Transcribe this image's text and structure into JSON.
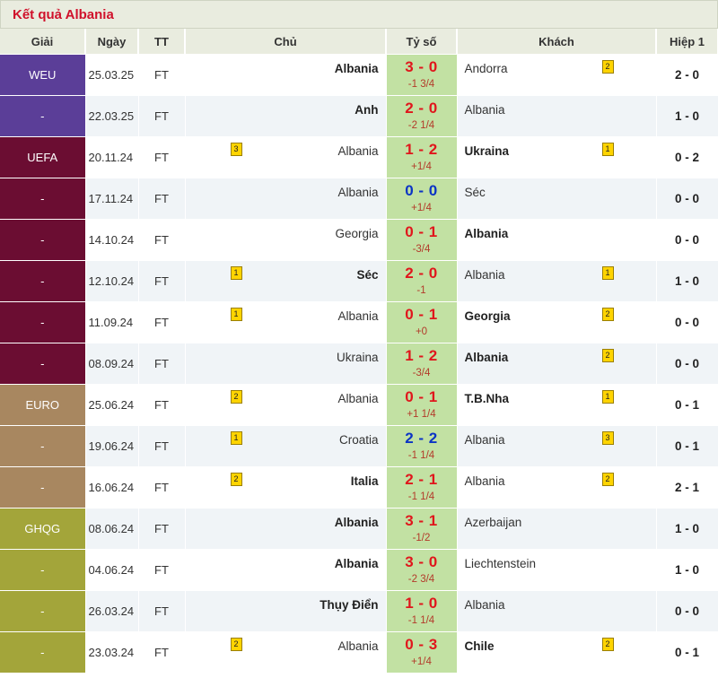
{
  "title": "Kết quả Albania",
  "headers": {
    "league": "Giải",
    "date": "Ngày",
    "status": "TT",
    "home": "Chủ",
    "score": "Tỷ số",
    "away": "Khách",
    "ht": "Hiệp 1"
  },
  "colors": {
    "weu": "#5b3e98",
    "uefa": "#6b0d32",
    "euro": "#a88760",
    "ghqg": "#a3a53a",
    "score_bg": "#c2e1a3",
    "score_red": "#e0161c",
    "score_blue": "#0b34c5",
    "title_red": "#d0112b"
  },
  "rows": [
    {
      "league": "WEU",
      "lc": "weu",
      "date": "25.03.25",
      "st": "FT",
      "home": "Albania",
      "home_bold": true,
      "home_badge": "",
      "score": "3 - 0",
      "sc": "red",
      "hc": "-1 3/4",
      "away": "Andorra",
      "away_bold": false,
      "away_badge": "2",
      "ht": "2 - 0"
    },
    {
      "league": "-",
      "lc": "weu",
      "date": "22.03.25",
      "st": "FT",
      "home": "Anh",
      "home_bold": true,
      "home_badge": "",
      "score": "2 - 0",
      "sc": "red",
      "hc": "-2 1/4",
      "away": "Albania",
      "away_bold": false,
      "away_badge": "",
      "ht": "1 - 0"
    },
    {
      "league": "UEFA",
      "lc": "uefa",
      "date": "20.11.24",
      "st": "FT",
      "home": "Albania",
      "home_bold": false,
      "home_badge": "3",
      "score": "1 - 2",
      "sc": "red",
      "hc": "+1/4",
      "away": "Ukraina",
      "away_bold": true,
      "away_badge": "1",
      "ht": "0 - 2"
    },
    {
      "league": "-",
      "lc": "uefa",
      "date": "17.11.24",
      "st": "FT",
      "home": "Albania",
      "home_bold": false,
      "home_badge": "",
      "score": "0 - 0",
      "sc": "blue",
      "hc": "+1/4",
      "away": "Séc",
      "away_bold": false,
      "away_badge": "",
      "ht": "0 - 0"
    },
    {
      "league": "-",
      "lc": "uefa",
      "date": "14.10.24",
      "st": "FT",
      "home": "Georgia",
      "home_bold": false,
      "home_badge": "",
      "score": "0 - 1",
      "sc": "red",
      "hc": "-3/4",
      "away": "Albania",
      "away_bold": true,
      "away_badge": "",
      "ht": "0 - 0"
    },
    {
      "league": "-",
      "lc": "uefa",
      "date": "12.10.24",
      "st": "FT",
      "home": "Séc",
      "home_bold": true,
      "home_badge": "1",
      "score": "2 - 0",
      "sc": "red",
      "hc": "-1",
      "away": "Albania",
      "away_bold": false,
      "away_badge": "1",
      "ht": "1 - 0"
    },
    {
      "league": "-",
      "lc": "uefa",
      "date": "11.09.24",
      "st": "FT",
      "home": "Albania",
      "home_bold": false,
      "home_badge": "1",
      "score": "0 - 1",
      "sc": "red",
      "hc": "+0",
      "away": "Georgia",
      "away_bold": true,
      "away_badge": "2",
      "ht": "0 - 0"
    },
    {
      "league": "-",
      "lc": "uefa",
      "date": "08.09.24",
      "st": "FT",
      "home": "Ukraina",
      "home_bold": false,
      "home_badge": "",
      "score": "1 - 2",
      "sc": "red",
      "hc": "-3/4",
      "away": "Albania",
      "away_bold": true,
      "away_badge": "2",
      "ht": "0 - 0"
    },
    {
      "league": "EURO",
      "lc": "euro",
      "date": "25.06.24",
      "st": "FT",
      "home": "Albania",
      "home_bold": false,
      "home_badge": "2",
      "score": "0 - 1",
      "sc": "red",
      "hc": "+1 1/4",
      "away": "T.B.Nha",
      "away_bold": true,
      "away_badge": "1",
      "ht": "0 - 1"
    },
    {
      "league": "-",
      "lc": "euro",
      "date": "19.06.24",
      "st": "FT",
      "home": "Croatia",
      "home_bold": false,
      "home_badge": "1",
      "score": "2 - 2",
      "sc": "blue",
      "hc": "-1 1/4",
      "away": "Albania",
      "away_bold": false,
      "away_badge": "3",
      "ht": "0 - 1"
    },
    {
      "league": "-",
      "lc": "euro",
      "date": "16.06.24",
      "st": "FT",
      "home": "Italia",
      "home_bold": true,
      "home_badge": "2",
      "score": "2 - 1",
      "sc": "red",
      "hc": "-1 1/4",
      "away": "Albania",
      "away_bold": false,
      "away_badge": "2",
      "ht": "2 - 1"
    },
    {
      "league": "GHQG",
      "lc": "ghqg",
      "date": "08.06.24",
      "st": "FT",
      "home": "Albania",
      "home_bold": true,
      "home_badge": "",
      "score": "3 - 1",
      "sc": "red",
      "hc": "-1/2",
      "away": "Azerbaijan",
      "away_bold": false,
      "away_badge": "",
      "ht": "1 - 0"
    },
    {
      "league": "-",
      "lc": "ghqg",
      "date": "04.06.24",
      "st": "FT",
      "home": "Albania",
      "home_bold": true,
      "home_badge": "",
      "score": "3 - 0",
      "sc": "red",
      "hc": "-2 3/4",
      "away": "Liechtenstein",
      "away_bold": false,
      "away_badge": "",
      "ht": "1 - 0"
    },
    {
      "league": "-",
      "lc": "ghqg",
      "date": "26.03.24",
      "st": "FT",
      "home": "Thụy Điển",
      "home_bold": true,
      "home_badge": "",
      "score": "1 - 0",
      "sc": "red",
      "hc": "-1 1/4",
      "away": "Albania",
      "away_bold": false,
      "away_badge": "",
      "ht": "0 - 0"
    },
    {
      "league": "-",
      "lc": "ghqg",
      "date": "23.03.24",
      "st": "FT",
      "home": "Albania",
      "home_bold": false,
      "home_badge": "2",
      "score": "0 - 3",
      "sc": "red",
      "hc": "+1/4",
      "away": "Chile",
      "away_bold": true,
      "away_badge": "2",
      "ht": "0 - 1"
    }
  ]
}
